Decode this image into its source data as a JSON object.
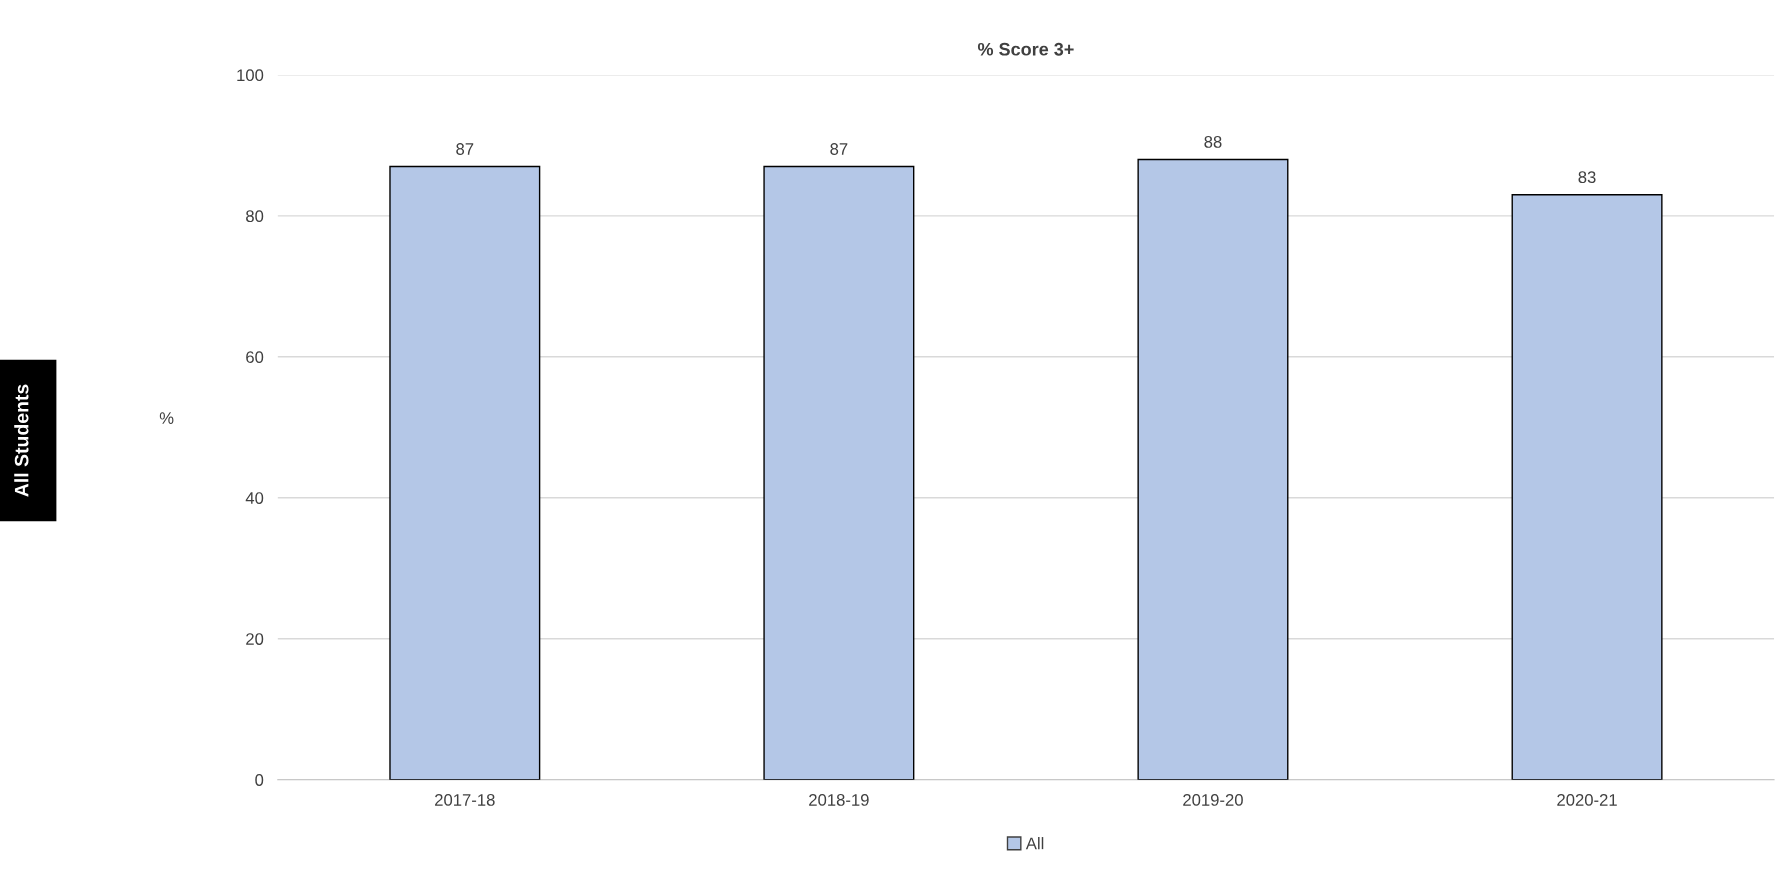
{
  "chart_data": {
    "type": "bar",
    "title": "% Score 3+",
    "ylabel": "%",
    "categories": [
      "2017-18",
      "2018-19",
      "2019-20",
      "2020-21"
    ],
    "series": [
      {
        "name": "All",
        "color": "#b4c7e7",
        "values": [
          87,
          87,
          88,
          83
        ]
      }
    ],
    "ylim": [
      0,
      100
    ],
    "yticks": [
      0,
      20,
      40,
      60,
      80,
      100
    ],
    "grid": "y",
    "data_labels": true,
    "legend": "bottom",
    "annotations": [
      "All Students"
    ]
  }
}
